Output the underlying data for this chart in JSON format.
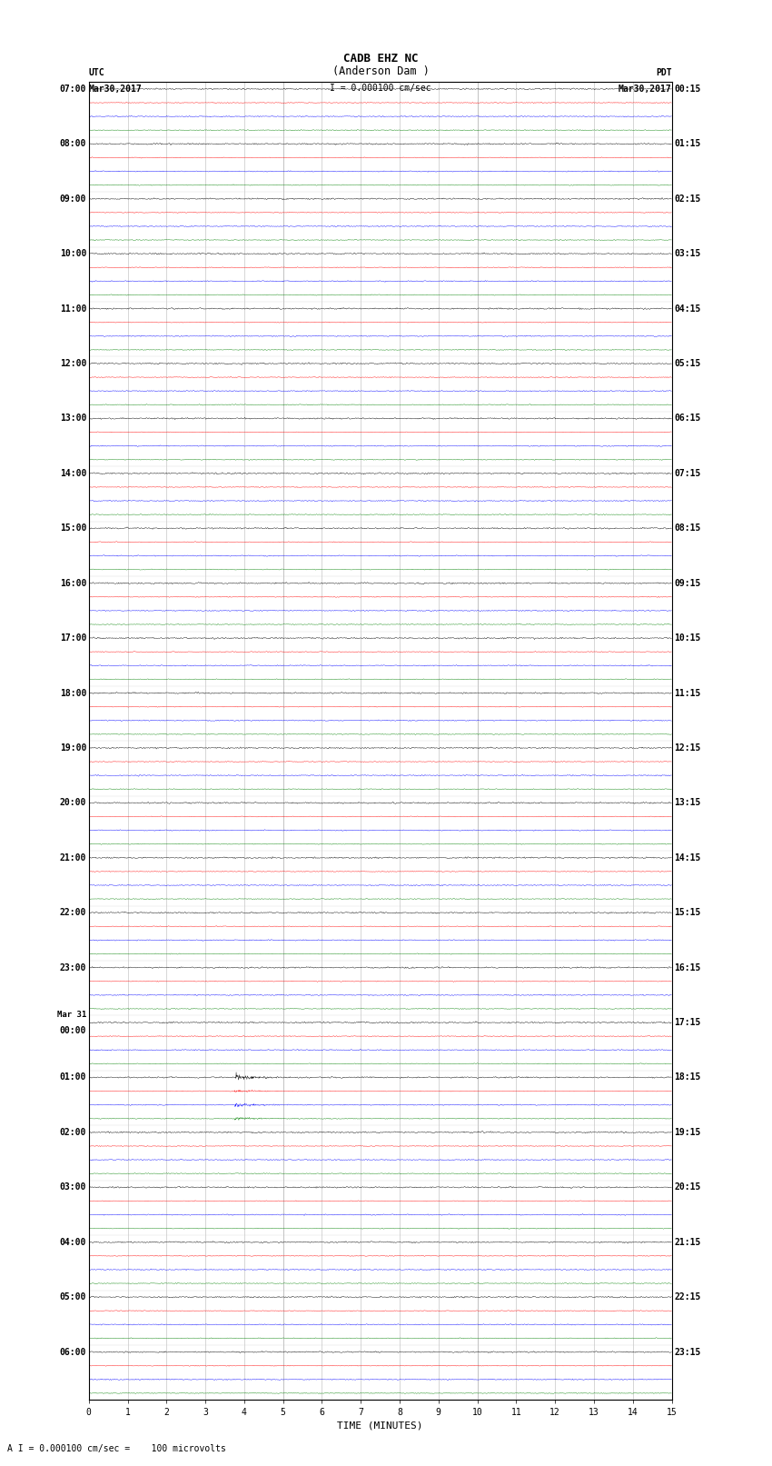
{
  "title_line1": "CADB EHZ NC",
  "title_line2": "(Anderson Dam )",
  "scale_text": "I = 0.000100 cm/sec",
  "left_label_line1": "UTC",
  "left_label_line2": "Mar30,2017",
  "right_label_line1": "PDT",
  "right_label_line2": "Mar30,2017",
  "footer_label": "A I = 0.000100 cm/sec =    100 microvolts",
  "xlabel": "TIME (MINUTES)",
  "minutes_per_row": 15,
  "row_colors": [
    "black",
    "red",
    "blue",
    "green"
  ],
  "bg_color": "white",
  "noise_amplitude_black": 0.035,
  "noise_amplitude_red": 0.018,
  "noise_amplitude_blue": 0.025,
  "noise_amplitude_green": 0.02,
  "left_time_labels": [
    "07:00",
    "08:00",
    "09:00",
    "10:00",
    "11:00",
    "12:00",
    "13:00",
    "14:00",
    "15:00",
    "16:00",
    "17:00",
    "18:00",
    "19:00",
    "20:00",
    "21:00",
    "22:00",
    "23:00",
    "Mar 31\n00:00",
    "01:00",
    "02:00",
    "03:00",
    "04:00",
    "05:00",
    "06:00"
  ],
  "right_time_labels": [
    "00:15",
    "01:15",
    "02:15",
    "03:15",
    "04:15",
    "05:15",
    "06:15",
    "07:15",
    "08:15",
    "09:15",
    "10:15",
    "11:15",
    "12:15",
    "13:15",
    "14:15",
    "15:15",
    "16:15",
    "17:15",
    "18:15",
    "19:15",
    "20:15",
    "21:15",
    "22:15",
    "23:15"
  ],
  "font_size_title": 9,
  "font_size_axis": 8,
  "font_size_ticks": 7,
  "font_size_footer": 7,
  "vert_grid_color": "#999999",
  "x_ticks": [
    0,
    1,
    2,
    3,
    4,
    5,
    6,
    7,
    8,
    9,
    10,
    11,
    12,
    13,
    14,
    15
  ]
}
